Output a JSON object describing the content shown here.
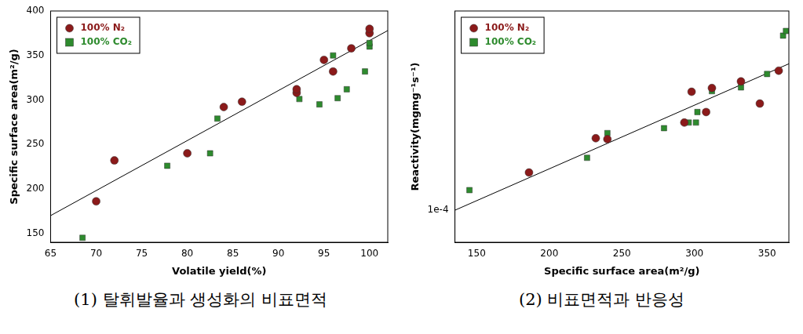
{
  "chart_data": [
    {
      "type": "scatter",
      "caption": "(1) 탈휘발율과 생성화의 비표면적",
      "x_label": "Volatile yield(%)",
      "y_label": "Specific surface area(m²/g)",
      "xlim": [
        65,
        102
      ],
      "xticks": [
        65,
        70,
        75,
        80,
        85,
        90,
        95,
        100
      ],
      "ylim": [
        140,
        400
      ],
      "yticks": [
        150,
        200,
        250,
        300,
        350,
        400
      ],
      "grid": false,
      "legend": "upper left",
      "series": [
        {
          "name": "100% N₂",
          "color": "#8b1a1a",
          "marker": "circle",
          "x": [
            70,
            72,
            80,
            84,
            86,
            92,
            92,
            95,
            96,
            98,
            100,
            100
          ],
          "values": [
            186,
            232,
            240,
            292,
            298,
            308,
            312,
            345,
            332,
            358,
            375,
            380
          ]
        },
        {
          "name": "100% CO₂",
          "color": "#2e8b2e",
          "marker": "square",
          "x": [
            68.5,
            77.8,
            82.5,
            83.3,
            92.3,
            94.5,
            96,
            96.5,
            97.5,
            99.5,
            100,
            100
          ],
          "values": [
            145,
            226,
            240,
            279,
            301,
            295,
            350,
            302,
            312,
            332,
            360,
            364
          ]
        }
      ],
      "trend_line": {
        "x": [
          65,
          102
        ],
        "values": [
          170,
          378
        ]
      }
    },
    {
      "type": "scatter",
      "caption": "(2) 비표면적과 반응성",
      "x_label": "Specific surface area(m²/g)",
      "y_label": "Reactivity(mgmg⁻¹s⁻¹)",
      "xlim": [
        135,
        365
      ],
      "xticks": [
        150,
        200,
        250,
        300,
        350
      ],
      "ylim": [
        8e-05,
        0.0004
      ],
      "yticks": [
        {
          "value": 0.0001,
          "label": "1e-4"
        }
      ],
      "log": "y",
      "grid": false,
      "legend": "upper left",
      "series": [
        {
          "name": "100% N₂",
          "color": "#8b1a1a",
          "marker": "circle",
          "x": [
            186,
            232,
            240,
            293,
            298,
            308,
            312,
            332,
            345,
            358
          ],
          "values": [
            0.00013,
            0.000165,
            0.000164,
            0.000184,
            0.000228,
            0.000198,
            0.000234,
            0.000245,
            0.00021,
            0.000264
          ]
        },
        {
          "name": "100% CO₂",
          "color": "#2e8b2e",
          "marker": "square",
          "x": [
            145,
            226,
            240,
            279,
            296,
            301,
            302,
            312,
            332,
            350,
            361,
            363
          ],
          "values": [
            0.000115,
            0.000144,
            0.000171,
            0.000177,
            0.000184,
            0.000184,
            0.000198,
            0.000229,
            0.000235,
            0.000258,
            0.000337,
            0.000348
          ]
        }
      ],
      "trend_line": {
        "x": [
          135,
          365
        ],
        "values": [
          0.0001,
          0.000277
        ]
      }
    }
  ]
}
